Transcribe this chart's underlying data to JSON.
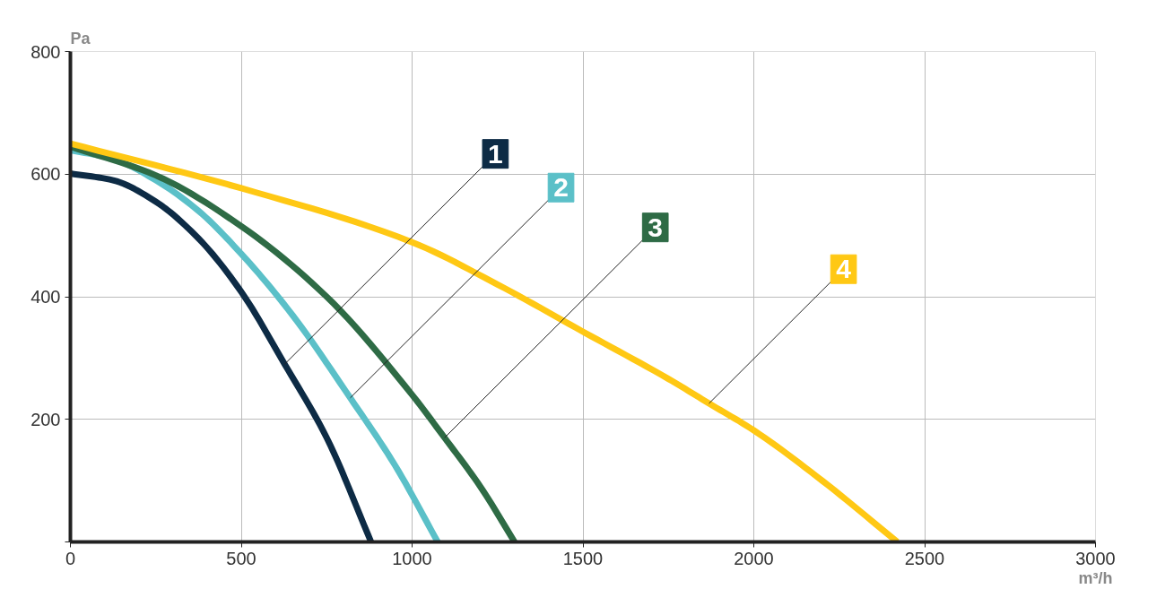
{
  "chart_data": {
    "type": "line",
    "xlabel": "m³/h",
    "ylabel": "Pa",
    "xlim": [
      0,
      3000
    ],
    "ylim": [
      0,
      800
    ],
    "xticks": [
      0,
      500,
      1000,
      1500,
      2000,
      2500,
      3000
    ],
    "yticks": [
      {
        "value": 0,
        "label": null
      },
      200,
      400,
      600,
      800
    ],
    "grid": true,
    "marker": "none",
    "line_style": "solid",
    "series": [
      {
        "color": "#0d2b45",
        "x": [
          0,
          125,
          250,
          375,
          500,
          627,
          750,
          880
        ],
        "values": [
          601,
          590,
          555,
          495,
          408,
          290,
          170,
          0
        ]
      },
      {
        "color": "#5bc0c8",
        "x": [
          0,
          125,
          250,
          375,
          500,
          650,
          819,
          950,
          1075
        ],
        "values": [
          639,
          625,
          590,
          540,
          470,
          370,
          235,
          125,
          0
        ]
      },
      {
        "color": "#2e6b45",
        "x": [
          0,
          250,
          500,
          750,
          1000,
          1095,
          1200,
          1300
        ],
        "values": [
          645,
          598,
          515,
          400,
          240,
          170,
          90,
          0
        ]
      },
      {
        "color": "#ffc814",
        "x": [
          0,
          500,
          1000,
          1250,
          1500,
          1750,
          1869,
          2000,
          2200,
          2420
        ],
        "values": [
          650,
          577,
          489,
          420,
          343,
          266,
          226,
          182,
          100,
          0
        ]
      }
    ],
    "annotations": [
      {
        "text": "1",
        "x": 627,
        "y": 290
      },
      {
        "text": "2",
        "x": 819,
        "y": 235
      },
      {
        "text": "3",
        "x": 1095,
        "y": 170
      },
      {
        "text": "4",
        "x": 1869,
        "y": 226
      }
    ]
  }
}
